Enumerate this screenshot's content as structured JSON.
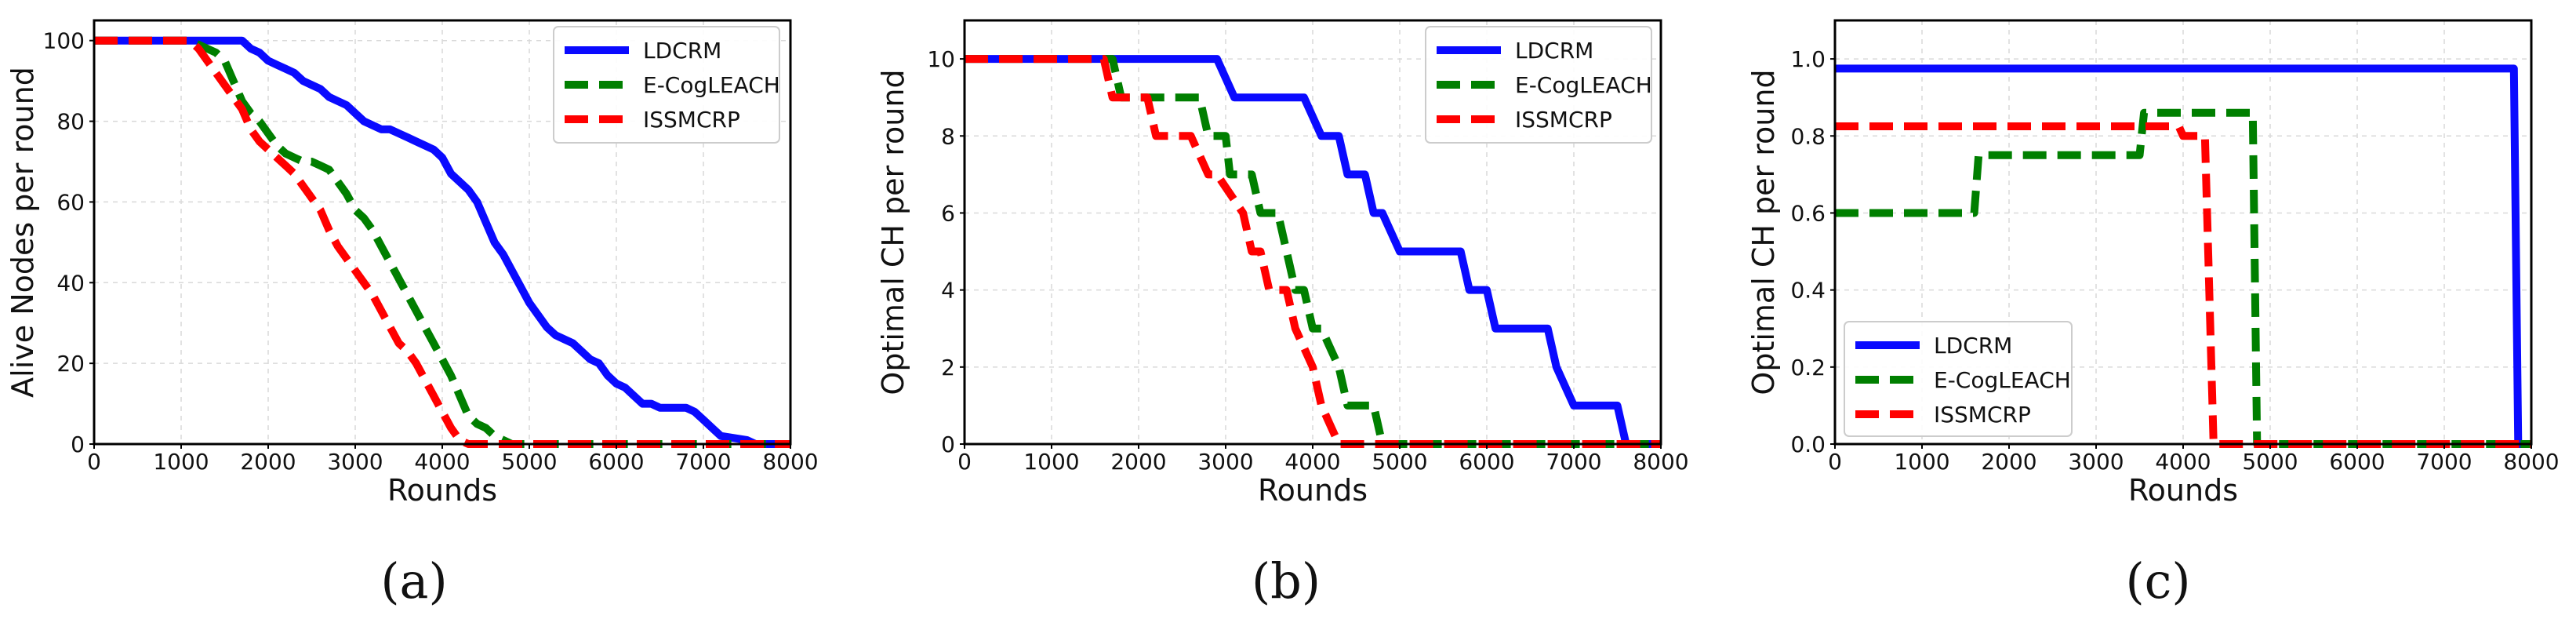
{
  "chart_data": [
    {
      "type": "line",
      "panel_label": "(a)",
      "xlabel": "Rounds",
      "ylabel": "Alive Nodes per round",
      "xlim": [
        0,
        8000
      ],
      "ylim": [
        0,
        105
      ],
      "xticks": [
        0,
        1000,
        2000,
        3000,
        4000,
        5000,
        6000,
        7000,
        8000
      ],
      "yticks": [
        0,
        20,
        40,
        60,
        80,
        100
      ],
      "xtick_labels": [
        "0",
        "1000",
        "2000",
        "3000",
        "4000",
        "5000",
        "6000",
        "7000",
        "8000"
      ],
      "ytick_labels": [
        "0",
        "20",
        "40",
        "60",
        "80",
        "100"
      ],
      "grid": true,
      "legend_position": "top-right",
      "series": [
        {
          "name": "LDCRM",
          "color": "#0a0aff",
          "dash": "solid",
          "x": [
            0,
            1700,
            1800,
            1900,
            2000,
            2100,
            2200,
            2300,
            2400,
            2500,
            2600,
            2700,
            2800,
            2900,
            3000,
            3100,
            3200,
            3300,
            3400,
            3500,
            3600,
            3700,
            3800,
            3900,
            4000,
            4100,
            4200,
            4300,
            4400,
            4500,
            4600,
            4700,
            4800,
            4900,
            5000,
            5100,
            5200,
            5300,
            5400,
            5500,
            5600,
            5700,
            5800,
            5900,
            6000,
            6100,
            6200,
            6300,
            6400,
            6500,
            6600,
            6700,
            6800,
            6900,
            7000,
            7100,
            7200,
            7500,
            7600,
            7700,
            8000
          ],
          "y": [
            100,
            100,
            98,
            97,
            95,
            94,
            93,
            92,
            90,
            89,
            88,
            86,
            85,
            84,
            82,
            80,
            79,
            78,
            78,
            77,
            76,
            75,
            74,
            73,
            71,
            67,
            65,
            63,
            60,
            55,
            50,
            47,
            43,
            39,
            35,
            32,
            29,
            27,
            26,
            25,
            23,
            21,
            20,
            17,
            15,
            14,
            12,
            10,
            10,
            9,
            9,
            9,
            9,
            8,
            6,
            4,
            2,
            1,
            0,
            0,
            0
          ]
        },
        {
          "name": "E-CogLEACH",
          "color": "#007f00",
          "dash": "dashed",
          "x": [
            0,
            1100,
            1200,
            1300,
            1400,
            1500,
            1600,
            1700,
            1800,
            1900,
            2000,
            2100,
            2200,
            2300,
            2400,
            2500,
            2600,
            2700,
            2800,
            2900,
            3000,
            3100,
            3200,
            3300,
            3400,
            3500,
            3600,
            3700,
            3800,
            3900,
            4000,
            4100,
            4200,
            4300,
            4400,
            4500,
            4600,
            4700,
            4800,
            5000,
            8000
          ],
          "y": [
            100,
            100,
            99,
            98,
            97,
            95,
            90,
            85,
            82,
            80,
            77,
            74,
            72,
            71,
            70,
            70,
            69,
            68,
            65,
            62,
            58,
            56,
            53,
            49,
            45,
            41,
            37,
            33,
            29,
            25,
            21,
            17,
            12,
            7,
            5,
            4,
            2,
            1,
            0,
            0,
            0
          ]
        },
        {
          "name": "ISSMCRP",
          "color": "#ff0000",
          "dash": "dashed",
          "x": [
            0,
            1100,
            1200,
            1300,
            1400,
            1500,
            1600,
            1700,
            1800,
            1900,
            2000,
            2100,
            2200,
            2300,
            2400,
            2500,
            2600,
            2700,
            2800,
            2900,
            3000,
            3100,
            3200,
            3300,
            3400,
            3500,
            3600,
            3700,
            3800,
            3900,
            4000,
            4100,
            4200,
            4300,
            4400,
            8000
          ],
          "y": [
            100,
            100,
            98,
            95,
            92,
            89,
            86,
            83,
            78,
            75,
            73,
            71,
            69,
            67,
            64,
            61,
            58,
            53,
            49,
            46,
            43,
            40,
            37,
            33,
            29,
            25,
            23,
            20,
            16,
            12,
            8,
            4,
            1,
            0,
            0,
            0
          ]
        }
      ]
    },
    {
      "type": "line",
      "panel_label": "(b)",
      "xlabel": "Rounds",
      "ylabel": "Optimal CH per round",
      "xlim": [
        0,
        8000
      ],
      "ylim": [
        0,
        11
      ],
      "xticks": [
        0,
        1000,
        2000,
        3000,
        4000,
        5000,
        6000,
        7000,
        8000
      ],
      "yticks": [
        0,
        2,
        4,
        6,
        8,
        10
      ],
      "xtick_labels": [
        "0",
        "1000",
        "2000",
        "3000",
        "4000",
        "5000",
        "6000",
        "7000",
        "8000"
      ],
      "ytick_labels": [
        "0",
        "2",
        "4",
        "6",
        "8",
        "10"
      ],
      "grid": true,
      "legend_position": "top-right",
      "series": [
        {
          "name": "LDCRM",
          "color": "#0a0aff",
          "dash": "solid",
          "x": [
            0,
            2900,
            3000,
            3100,
            3900,
            4000,
            4100,
            4300,
            4400,
            4600,
            4700,
            4800,
            4900,
            5000,
            5100,
            5200,
            5700,
            5800,
            6000,
            6100,
            6700,
            6800,
            6900,
            7000,
            7500,
            7600,
            8000
          ],
          "y": [
            10,
            10,
            9.5,
            9,
            9,
            8.5,
            8,
            8,
            7,
            7,
            6,
            6,
            5.5,
            5,
            5,
            5,
            5,
            4,
            4,
            3,
            3,
            2,
            1.5,
            1,
            1,
            0,
            0
          ],
          "step": false
        },
        {
          "name": "E-CogLEACH",
          "color": "#007f00",
          "dash": "dashed",
          "x": [
            0,
            1700,
            1800,
            2700,
            2800,
            3000,
            3050,
            3200,
            3300,
            3400,
            3500,
            3600,
            3700,
            3800,
            3900,
            4000,
            4100,
            4200,
            4300,
            4400,
            4500,
            4700,
            4800,
            8000
          ],
          "y": [
            10,
            10,
            9,
            9,
            8,
            8,
            7,
            7,
            7,
            6,
            6,
            6,
            5,
            4,
            4,
            3,
            3,
            2.5,
            2,
            1,
            1,
            1,
            0,
            0
          ]
        },
        {
          "name": "ISSMCRP",
          "color": "#ff0000",
          "dash": "dashed",
          "x": [
            0,
            1600,
            1700,
            2100,
            2200,
            2500,
            2600,
            2800,
            2900,
            3200,
            3300,
            3400,
            3500,
            3700,
            3800,
            3900,
            4000,
            4100,
            4200,
            4300,
            8000
          ],
          "y": [
            10,
            10,
            9,
            9,
            8,
            8,
            8,
            7,
            7,
            6,
            5,
            5,
            4,
            4,
            3,
            2.5,
            2,
            1,
            0.5,
            0,
            0
          ]
        }
      ]
    },
    {
      "type": "line",
      "panel_label": "(c)",
      "xlabel": "Rounds",
      "ylabel": "Optimal CH per round",
      "xlim": [
        0,
        8000
      ],
      "ylim": [
        0,
        1.1
      ],
      "xticks": [
        0,
        1000,
        2000,
        3000,
        4000,
        5000,
        6000,
        7000,
        8000
      ],
      "yticks": [
        0,
        0.2,
        0.4,
        0.6,
        0.8,
        1.0
      ],
      "xtick_labels": [
        "0",
        "1000",
        "2000",
        "3000",
        "4000",
        "5000",
        "6000",
        "7000",
        "8000"
      ],
      "ytick_labels": [
        "0.0",
        "0.2",
        "0.4",
        "0.6",
        "0.8",
        "1.0"
      ],
      "grid": true,
      "legend_position": "bottom-left",
      "series": [
        {
          "name": "LDCRM",
          "color": "#0a0aff",
          "dash": "solid",
          "x": [
            0,
            7800,
            7850,
            8000
          ],
          "y": [
            0.975,
            0.975,
            0,
            0
          ]
        },
        {
          "name": "E-CogLEACH",
          "color": "#007f00",
          "dash": "dashed",
          "x": [
            0,
            1600,
            1650,
            3500,
            3550,
            4800,
            4850,
            8000
          ],
          "y": [
            0.6,
            0.6,
            0.75,
            0.75,
            0.86,
            0.86,
            0,
            0
          ]
        },
        {
          "name": "ISSMCRP",
          "color": "#ff0000",
          "dash": "dashed",
          "x": [
            0,
            3950,
            4000,
            4250,
            4350,
            8000
          ],
          "y": [
            0.825,
            0.825,
            0.8,
            0.8,
            0,
            0
          ]
        }
      ]
    }
  ]
}
